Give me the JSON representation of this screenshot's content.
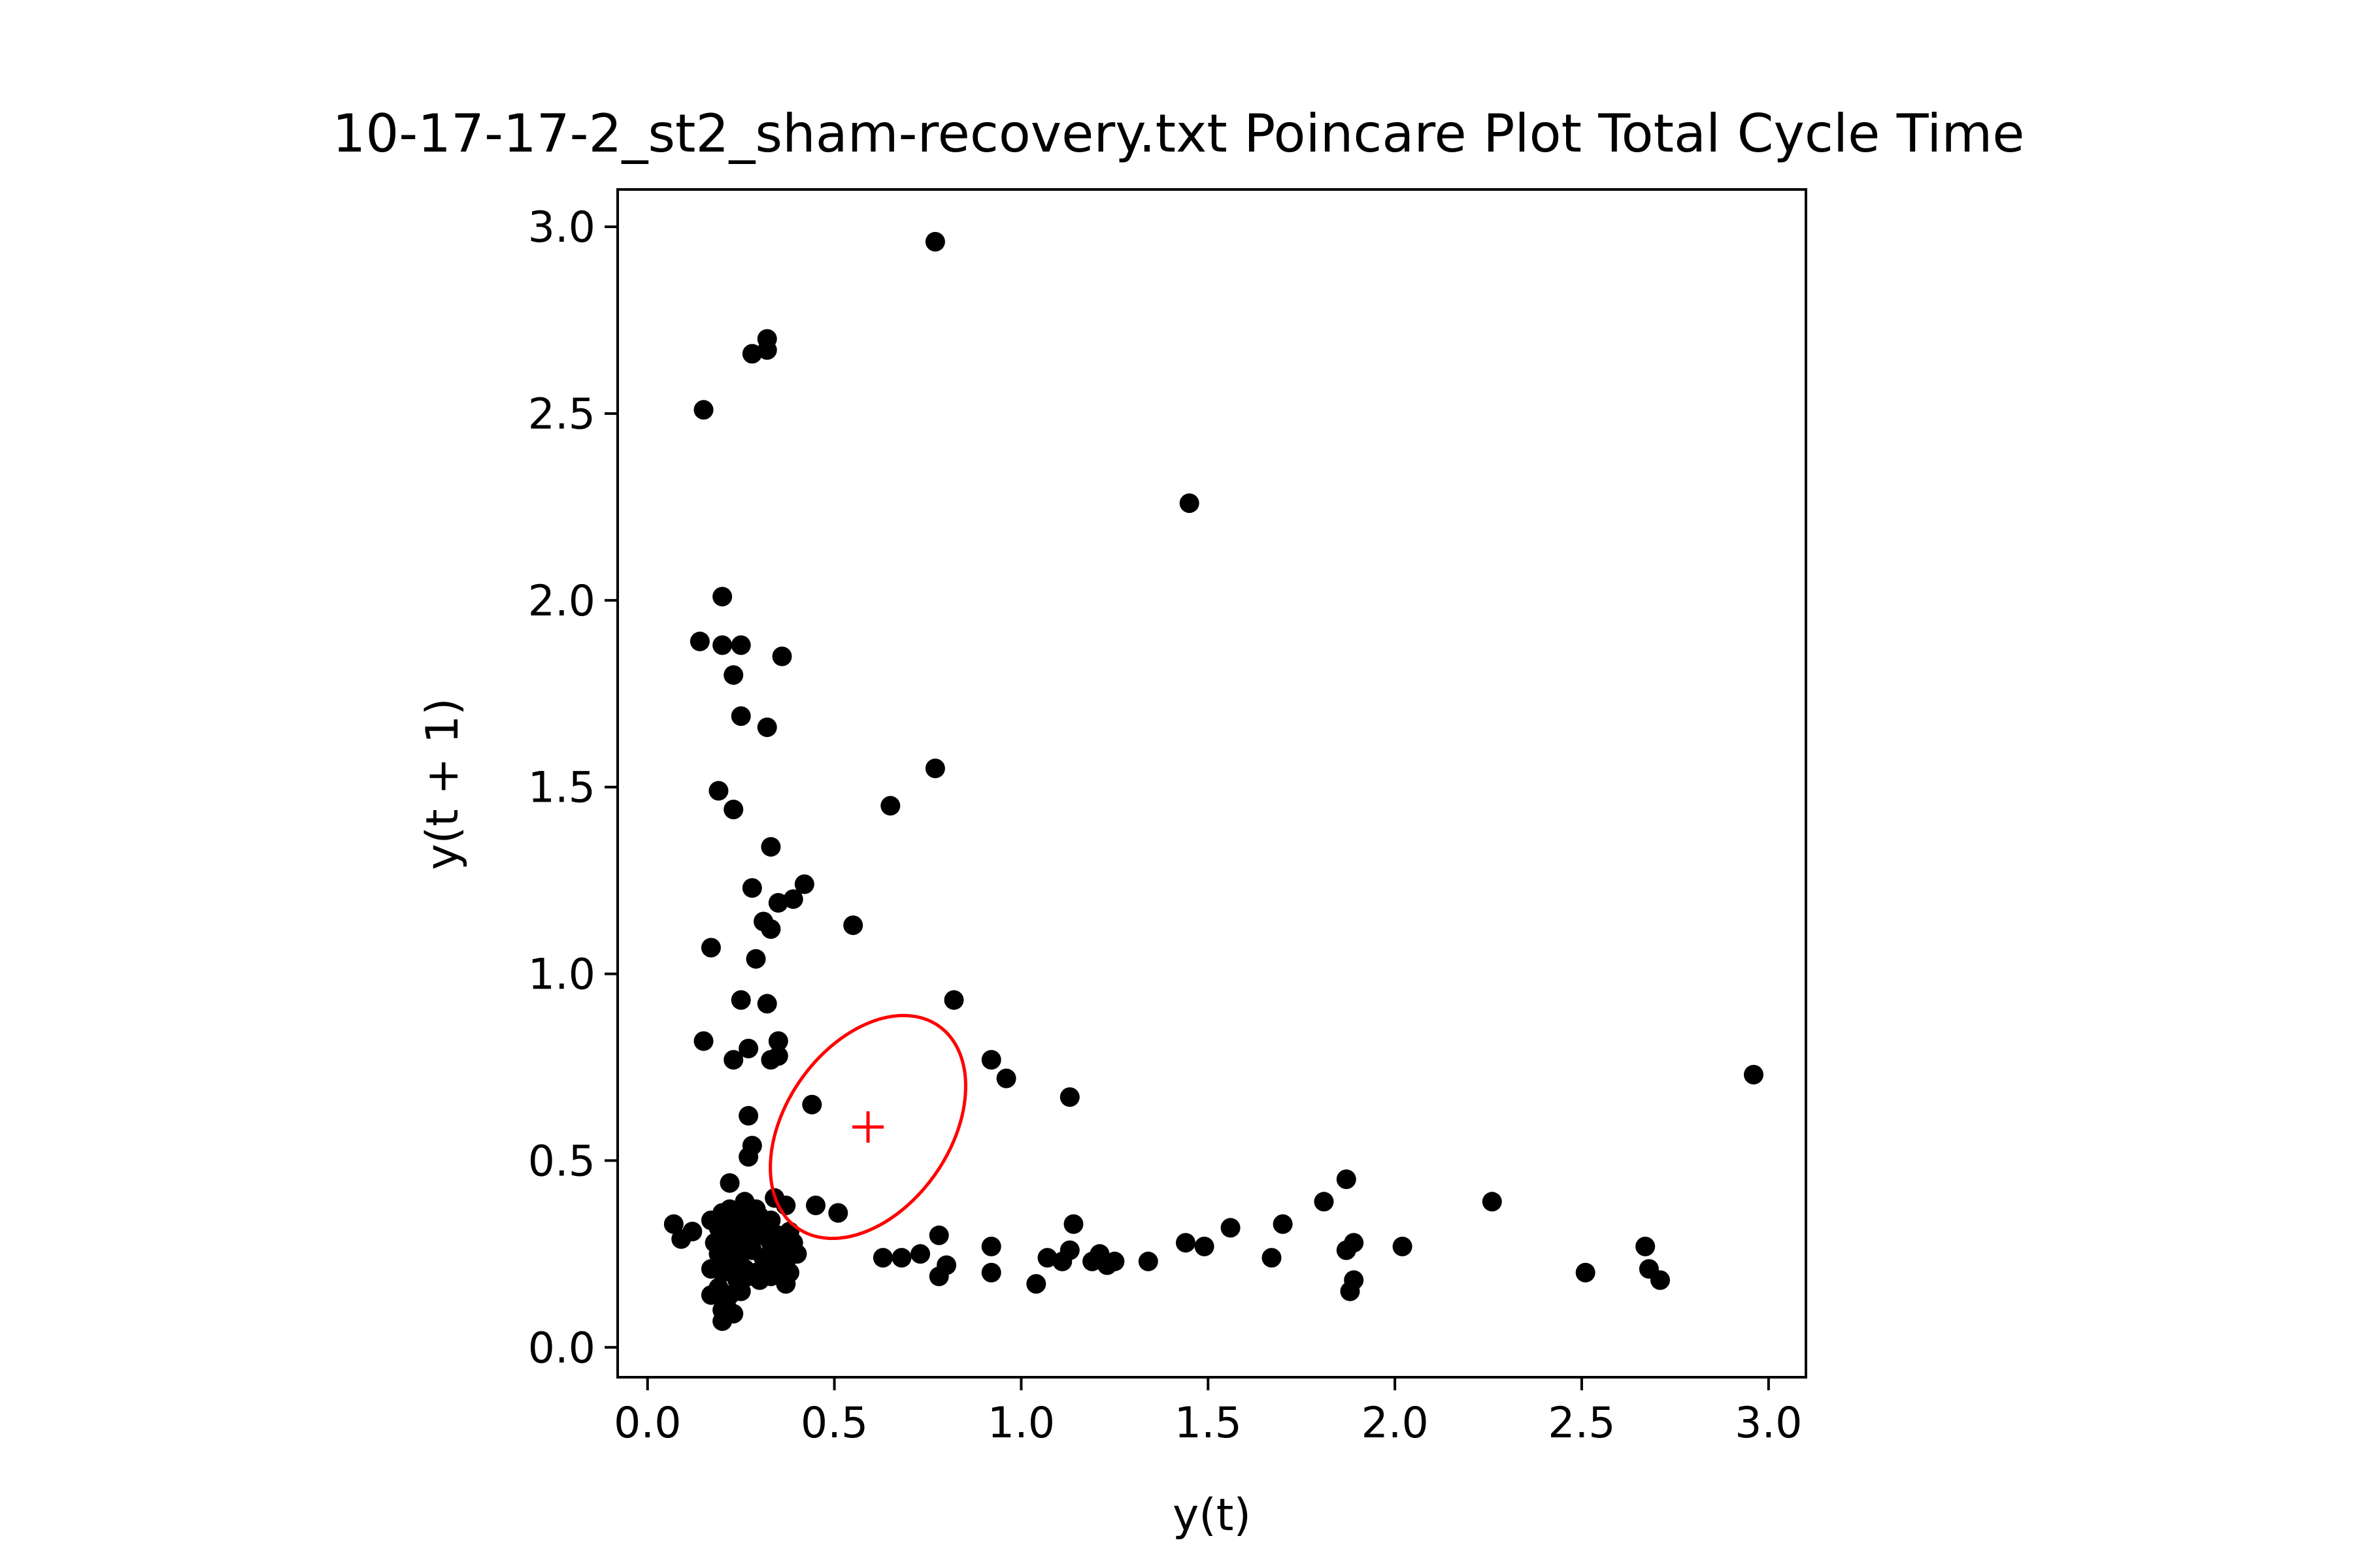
{
  "chart_data": {
    "type": "scatter",
    "title": "10-17-17-2_st2_sham-recovery.txt Poincare Plot Total Cycle Time",
    "xlabel": "y(t)",
    "ylabel": "y(t + 1)",
    "xlim": [
      -0.08,
      3.1
    ],
    "ylim": [
      -0.08,
      3.1
    ],
    "xticks": [
      0.0,
      0.5,
      1.0,
      1.5,
      2.0,
      2.5,
      3.0
    ],
    "xtick_labels": [
      "0.0",
      "0.5",
      "1.0",
      "1.5",
      "2.0",
      "2.5",
      "3.0"
    ],
    "yticks": [
      0.0,
      0.5,
      1.0,
      1.5,
      2.0,
      2.5,
      3.0
    ],
    "ytick_labels": [
      "0.0",
      "0.5",
      "1.0",
      "1.5",
      "2.0",
      "2.5",
      "3.0"
    ],
    "grid": false,
    "point_color": "#000000",
    "ellipse_color": "#ff0000",
    "centroid": {
      "x": 0.59,
      "y": 0.59,
      "marker": "+"
    },
    "ellipse": {
      "cx": 0.59,
      "cy": 0.59,
      "semi_axis_1": 0.33,
      "semi_axis_2": 0.22,
      "angle_deg": 55
    },
    "points": [
      [
        0.77,
        2.96
      ],
      [
        0.32,
        2.7
      ],
      [
        0.28,
        2.66
      ],
      [
        0.32,
        2.67
      ],
      [
        0.15,
        2.51
      ],
      [
        1.45,
        2.26
      ],
      [
        0.2,
        2.01
      ],
      [
        0.14,
        1.89
      ],
      [
        0.2,
        1.88
      ],
      [
        0.25,
        1.88
      ],
      [
        0.36,
        1.85
      ],
      [
        0.23,
        1.8
      ],
      [
        0.25,
        1.69
      ],
      [
        0.32,
        1.66
      ],
      [
        0.77,
        1.55
      ],
      [
        0.19,
        1.49
      ],
      [
        0.65,
        1.45
      ],
      [
        0.23,
        1.44
      ],
      [
        0.33,
        1.34
      ],
      [
        0.28,
        1.23
      ],
      [
        0.42,
        1.24
      ],
      [
        0.39,
        1.2
      ],
      [
        0.35,
        1.19
      ],
      [
        0.55,
        1.13
      ],
      [
        0.31,
        1.14
      ],
      [
        0.33,
        1.12
      ],
      [
        0.17,
        1.07
      ],
      [
        0.29,
        1.04
      ],
      [
        0.25,
        0.93
      ],
      [
        0.32,
        0.92
      ],
      [
        0.82,
        0.93
      ],
      [
        0.15,
        0.82
      ],
      [
        0.35,
        0.82
      ],
      [
        0.27,
        0.8
      ],
      [
        0.23,
        0.77
      ],
      [
        0.35,
        0.78
      ],
      [
        0.92,
        0.77
      ],
      [
        0.33,
        0.77
      ],
      [
        0.96,
        0.72
      ],
      [
        1.13,
        0.67
      ],
      [
        2.96,
        0.73
      ],
      [
        0.44,
        0.65
      ],
      [
        0.27,
        0.62
      ],
      [
        0.28,
        0.54
      ],
      [
        0.27,
        0.51
      ],
      [
        1.87,
        0.45
      ],
      [
        0.22,
        0.44
      ],
      [
        1.81,
        0.39
      ],
      [
        2.26,
        0.39
      ],
      [
        0.34,
        0.4
      ],
      [
        0.45,
        0.38
      ],
      [
        0.51,
        0.36
      ],
      [
        0.37,
        0.38
      ],
      [
        0.2,
        0.36
      ],
      [
        0.07,
        0.33
      ],
      [
        0.12,
        0.31
      ],
      [
        0.09,
        0.29
      ],
      [
        0.17,
        0.34
      ],
      [
        0.22,
        0.35
      ],
      [
        0.26,
        0.36
      ],
      [
        0.3,
        0.35
      ],
      [
        0.33,
        0.34
      ],
      [
        1.14,
        0.33
      ],
      [
        1.56,
        0.32
      ],
      [
        1.7,
        0.33
      ],
      [
        0.78,
        0.3
      ],
      [
        0.92,
        0.27
      ],
      [
        1.44,
        0.28
      ],
      [
        1.49,
        0.27
      ],
      [
        1.87,
        0.26
      ],
      [
        1.89,
        0.28
      ],
      [
        2.02,
        0.27
      ],
      [
        2.67,
        0.27
      ],
      [
        0.63,
        0.24
      ],
      [
        0.68,
        0.24
      ],
      [
        0.73,
        0.25
      ],
      [
        1.07,
        0.24
      ],
      [
        1.11,
        0.23
      ],
      [
        1.13,
        0.26
      ],
      [
        1.19,
        0.23
      ],
      [
        1.21,
        0.25
      ],
      [
        1.23,
        0.22
      ],
      [
        1.25,
        0.23
      ],
      [
        1.34,
        0.23
      ],
      [
        1.67,
        0.24
      ],
      [
        0.8,
        0.22
      ],
      [
        0.92,
        0.2
      ],
      [
        2.51,
        0.2
      ],
      [
        2.68,
        0.21
      ],
      [
        2.71,
        0.18
      ],
      [
        0.78,
        0.19
      ],
      [
        1.04,
        0.17
      ],
      [
        1.89,
        0.18
      ],
      [
        1.88,
        0.15
      ],
      [
        0.18,
        0.28
      ],
      [
        0.21,
        0.3
      ],
      [
        0.24,
        0.31
      ],
      [
        0.27,
        0.28
      ],
      [
        0.3,
        0.3
      ],
      [
        0.33,
        0.28
      ],
      [
        0.36,
        0.27
      ],
      [
        0.39,
        0.28
      ],
      [
        0.19,
        0.25
      ],
      [
        0.22,
        0.24
      ],
      [
        0.25,
        0.25
      ],
      [
        0.28,
        0.26
      ],
      [
        0.31,
        0.24
      ],
      [
        0.34,
        0.25
      ],
      [
        0.37,
        0.23
      ],
      [
        0.4,
        0.25
      ],
      [
        0.23,
        0.22
      ],
      [
        0.26,
        0.21
      ],
      [
        0.29,
        0.2
      ],
      [
        0.32,
        0.22
      ],
      [
        0.35,
        0.21
      ],
      [
        0.38,
        0.2
      ],
      [
        0.2,
        0.2
      ],
      [
        0.24,
        0.18
      ],
      [
        0.27,
        0.19
      ],
      [
        0.3,
        0.18
      ],
      [
        0.33,
        0.19
      ],
      [
        0.37,
        0.17
      ],
      [
        0.17,
        0.21
      ],
      [
        0.19,
        0.16
      ],
      [
        0.22,
        0.14
      ],
      [
        0.25,
        0.15
      ],
      [
        0.17,
        0.14
      ],
      [
        0.21,
        0.12
      ],
      [
        0.2,
        0.1
      ],
      [
        0.23,
        0.09
      ],
      [
        0.2,
        0.07
      ],
      [
        0.22,
        0.37
      ],
      [
        0.25,
        0.33
      ],
      [
        0.28,
        0.32
      ],
      [
        0.31,
        0.31
      ],
      [
        0.19,
        0.32
      ],
      [
        0.26,
        0.39
      ],
      [
        0.29,
        0.37
      ],
      [
        0.23,
        0.27
      ],
      [
        0.35,
        0.3
      ],
      [
        0.38,
        0.31
      ],
      [
        0.26,
        0.3
      ]
    ]
  }
}
